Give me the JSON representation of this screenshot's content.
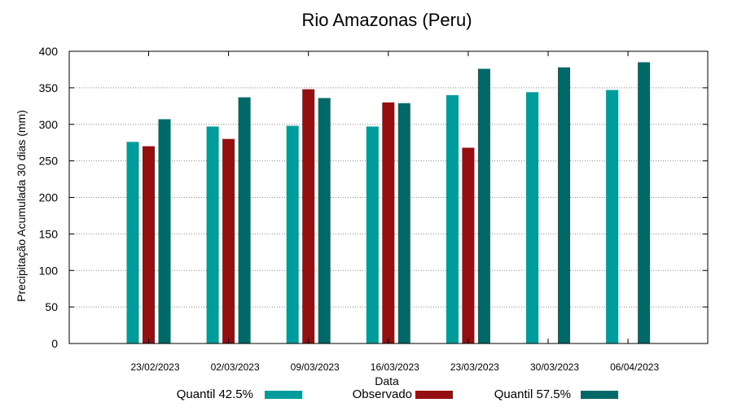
{
  "chart_data": {
    "type": "bar",
    "title": "Rio Amazonas (Peru)",
    "xlabel": "Data",
    "ylabel": "Precipitação Acumulada 30 dias (mm)",
    "ylim": [
      0,
      400
    ],
    "yticks": [
      "0",
      "50",
      "100",
      "150",
      "200",
      "250",
      "300",
      "350",
      "400"
    ],
    "grid": true,
    "legend_position": "bottom",
    "categories": [
      "23/02/2023",
      "02/03/2023",
      "09/03/2023",
      "16/03/2023",
      "23/03/2023",
      "30/03/2023",
      "06/04/2023"
    ],
    "series": [
      {
        "name": "Quantil 42.5%",
        "color": "#009c9c",
        "values": [
          276,
          297,
          298,
          297,
          340,
          344,
          347
        ]
      },
      {
        "name": "Observado",
        "color": "#950f11",
        "values": [
          270,
          280,
          348,
          330,
          268,
          null,
          null
        ]
      },
      {
        "name": "Quantil 57.5%",
        "color": "#016868",
        "values": [
          307,
          337,
          336,
          329,
          376,
          378,
          385
        ]
      }
    ]
  }
}
